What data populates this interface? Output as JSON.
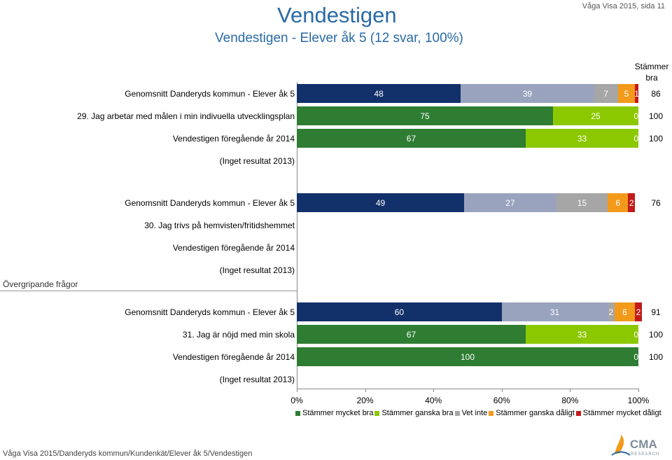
{
  "header": {
    "title": "Vendestigen",
    "subtitle": "Vendestigen - Elever åk 5 (12 svar, 100%)",
    "page_info": "Våga Visa 2015, sida 11",
    "right_column_header_line1": "Stämmer",
    "right_column_header_line2": "bra"
  },
  "section_label": "Övergripande frågor",
  "footer": {
    "text": "Våga Visa 2015/Danderyds kommun/Kundenkät/Elever åk 5/Vendestigen",
    "logo_text": "CMA",
    "logo_subtext": "RESEARCH"
  },
  "colors": {
    "title": "#2a6aa6",
    "s1": "#12306a",
    "s2": "#9aa3be",
    "s3_vet": "#a6a6a6",
    "s4": "#f39a1b",
    "s5": "#c31a1a",
    "g1": "#2e7d32",
    "g2": "#8cc800"
  },
  "chart_data": {
    "type": "stacked-bar-horizontal",
    "x_axis": {
      "min": 0,
      "max": 100,
      "ticks": [
        "0%",
        "20%",
        "40%",
        "60%",
        "80%",
        "100%"
      ]
    },
    "legend": [
      {
        "label": "Stämmer mycket bra",
        "color": "#2e7d32"
      },
      {
        "label": "Stämmer ganska bra",
        "color": "#8cc800"
      },
      {
        "label": "Vet inte",
        "color": "#a6a6a6"
      },
      {
        "label": "Stämmer ganska dåligt",
        "color": "#f39a1b"
      },
      {
        "label": "Stämmer mycket dåligt",
        "color": "#c31a1a"
      }
    ],
    "rows": [
      {
        "label": "Genomsnitt Danderyds kommun - Elever åk 5",
        "kind": "avg",
        "segments": [
          {
            "v": 48,
            "label": "48",
            "color": "#12306a",
            "text": "#ffffff"
          },
          {
            "v": 39,
            "label": "39",
            "color": "#9aa3be",
            "text": "#ffffff"
          },
          {
            "v": 7,
            "label": "7",
            "color": "#a6a6a6",
            "text": "#ffffff"
          },
          {
            "v": 5,
            "label": "5",
            "color": "#f39a1b",
            "text": "#ffffff"
          },
          {
            "v": 1,
            "label": "1",
            "color": "#c31a1a",
            "text": "#ffffff"
          }
        ],
        "total": "86"
      },
      {
        "label": "29. Jag arbetar med målen i min indivuella utvecklingsplan",
        "kind": "main",
        "segments": [
          {
            "v": 75,
            "label": "75",
            "color": "#2e7d32",
            "text": "#ffffff"
          },
          {
            "v": 25,
            "label": "25",
            "color": "#8cc800",
            "text": "#ffffff"
          },
          {
            "v": 0,
            "label": "0",
            "color": "#a6a6a6",
            "text": "#ffffff"
          }
        ],
        "total": "100"
      },
      {
        "label": "Vendestigen föregående år 2014",
        "kind": "prev",
        "segments": [
          {
            "v": 67,
            "label": "67",
            "color": "#2e7d32",
            "text": "#ffffff"
          },
          {
            "v": 33,
            "label": "33",
            "color": "#8cc800",
            "text": "#ffffff"
          },
          {
            "v": 0,
            "label": "0",
            "color": "#a6a6a6",
            "text": "#ffffff"
          }
        ],
        "total": "100"
      },
      {
        "label": "(Inget resultat 2013)",
        "kind": "none",
        "segments": [],
        "total": ""
      },
      {
        "label": "Genomsnitt Danderyds kommun - Elever åk 5",
        "kind": "avg",
        "segments": [
          {
            "v": 49,
            "label": "49",
            "color": "#12306a",
            "text": "#ffffff"
          },
          {
            "v": 27,
            "label": "27",
            "color": "#9aa3be",
            "text": "#ffffff"
          },
          {
            "v": 15,
            "label": "15",
            "color": "#a6a6a6",
            "text": "#ffffff"
          },
          {
            "v": 6,
            "label": "6",
            "color": "#f39a1b",
            "text": "#ffffff"
          },
          {
            "v": 2,
            "label": "2",
            "color": "#c31a1a",
            "text": "#ffffff"
          }
        ],
        "total": "76"
      },
      {
        "label": "30. Jag trivs på hemvisten/fritidshemmet",
        "kind": "main",
        "segments": [],
        "total": ""
      },
      {
        "label": "Vendestigen föregående år 2014",
        "kind": "prev",
        "segments": [],
        "total": ""
      },
      {
        "label": "(Inget resultat 2013)",
        "kind": "none",
        "segments": [],
        "total": ""
      },
      {
        "label": "Genomsnitt Danderyds kommun - Elever åk 5",
        "kind": "avg",
        "segments": [
          {
            "v": 60,
            "label": "60",
            "color": "#12306a",
            "text": "#ffffff"
          },
          {
            "v": 31,
            "label": "31",
            "color": "#9aa3be",
            "text": "#ffffff"
          },
          {
            "v": 2,
            "label": "2",
            "color": "#a6a6a6",
            "text": "#ffffff"
          },
          {
            "v": 6,
            "label": "6",
            "color": "#f39a1b",
            "text": "#ffffff"
          },
          {
            "v": 2,
            "label": "2",
            "color": "#c31a1a",
            "text": "#ffffff"
          }
        ],
        "total": "91"
      },
      {
        "label": "31. Jag är nöjd med min skola",
        "kind": "main",
        "segments": [
          {
            "v": 67,
            "label": "67",
            "color": "#2e7d32",
            "text": "#ffffff"
          },
          {
            "v": 33,
            "label": "33",
            "color": "#8cc800",
            "text": "#ffffff"
          },
          {
            "v": 0,
            "label": "0",
            "color": "#a6a6a6",
            "text": "#ffffff"
          }
        ],
        "total": "100"
      },
      {
        "label": "Vendestigen föregående år 2014",
        "kind": "prev",
        "segments": [
          {
            "v": 100,
            "label": "100",
            "color": "#2e7d32",
            "text": "#ffffff"
          },
          {
            "v": 0,
            "label": "0",
            "color": "#a6a6a6",
            "text": "#ffffff"
          }
        ],
        "total": "100"
      },
      {
        "label": "(Inget resultat 2013)",
        "kind": "none",
        "segments": [],
        "total": ""
      }
    ]
  }
}
